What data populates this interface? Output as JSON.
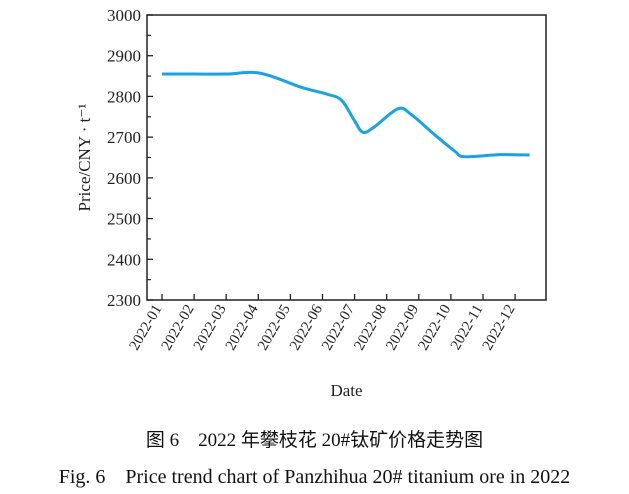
{
  "chart_data": {
    "type": "line",
    "title": "",
    "xlabel": "Date",
    "ylabel": "Price/CNY · t⁻¹",
    "ylim": [
      2300,
      3000
    ],
    "yticks": [
      2300,
      2400,
      2500,
      2600,
      2700,
      2800,
      2900,
      3000
    ],
    "xticks": [
      "2022-01",
      "2022-02",
      "2022-03",
      "2022-04",
      "2022-05",
      "2022-06",
      "2022-07",
      "2022-08",
      "2022-09",
      "2022-10",
      "2022-11",
      "2022-12"
    ],
    "grid": false,
    "line_color": "#1aa3e0",
    "series": [
      {
        "x": [
          "2022-01-01",
          "2022-02-01",
          "2022-03-01",
          "2022-04-03",
          "2022-05-12",
          "2022-06-06",
          "2022-06-19",
          "2022-07-01",
          "2022-07-09",
          "2022-07-20",
          "2022-08-12",
          "2022-08-25",
          "2022-09-14",
          "2022-10-05",
          "2022-10-14",
          "2022-11-17",
          "2022-12-15"
        ],
        "y": [
          2855,
          2855,
          2855,
          2857,
          2822,
          2805,
          2790,
          2740,
          2712,
          2725,
          2770,
          2755,
          2710,
          2665,
          2652,
          2657,
          2656
        ]
      }
    ]
  },
  "caption_cn": "图 6　2022 年攀枝花 20#钛矿价格走势图",
  "caption_en": "Fig. 6　Price trend chart of Panzhihua 20# titanium ore in 2022"
}
